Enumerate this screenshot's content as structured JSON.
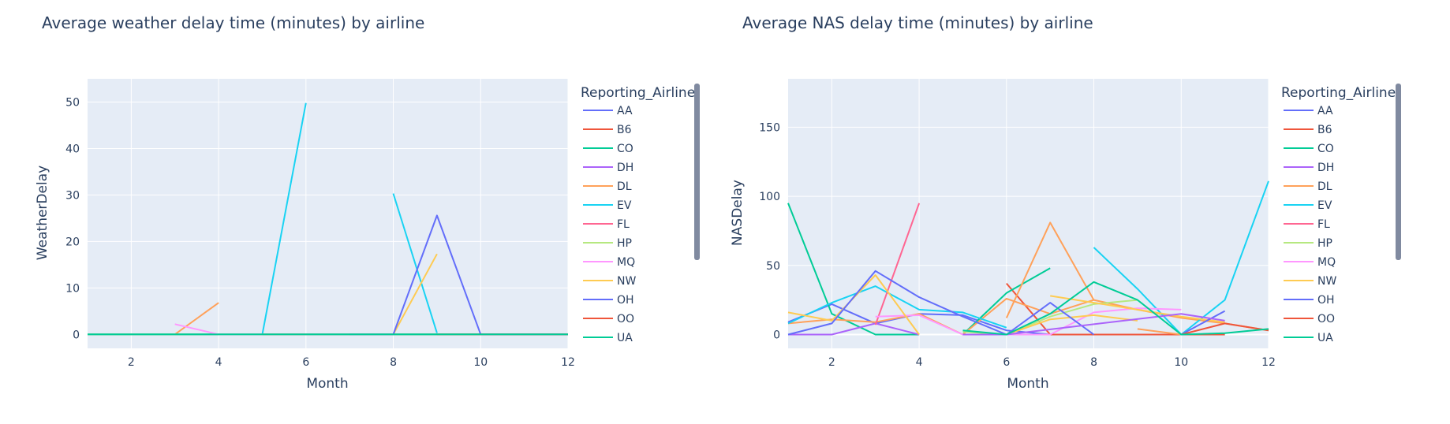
{
  "chart_data": [
    {
      "type": "line",
      "title": "Average weather delay time (minutes) by airline",
      "xlabel": "Month",
      "ylabel": "WeatherDelay",
      "xlim": [
        1,
        12
      ],
      "ylim": [
        -3,
        55
      ],
      "xticks": [
        2,
        4,
        6,
        8,
        10,
        12
      ],
      "yticks": [
        0,
        10,
        20,
        30,
        40,
        50
      ],
      "grid": true,
      "legend_title": "Reporting_Airline",
      "legend_position": "right",
      "series": [
        {
          "name": "AA",
          "color": "#636efa",
          "points": [
            [
              1,
              0
            ],
            [
              2,
              0
            ],
            [
              3,
              0
            ],
            [
              4,
              0
            ],
            [
              5,
              0
            ],
            [
              6,
              0
            ],
            [
              7,
              0
            ],
            [
              8,
              0
            ],
            [
              9,
              0
            ],
            [
              10,
              0
            ],
            [
              11,
              0
            ],
            [
              12,
              0
            ]
          ]
        },
        {
          "name": "B6",
          "color": "#EF553B",
          "points": [
            [
              1,
              0
            ],
            [
              2,
              0
            ],
            [
              3,
              0
            ],
            [
              4,
              0
            ],
            [
              5,
              0
            ],
            [
              6,
              0
            ],
            [
              7,
              0
            ],
            [
              8,
              0
            ],
            [
              9,
              0
            ],
            [
              10,
              0
            ],
            [
              11,
              0
            ],
            [
              12,
              0
            ]
          ]
        },
        {
          "name": "CO",
          "color": "#00cc96",
          "points": [
            [
              1,
              0
            ],
            [
              2,
              0
            ],
            [
              3,
              0
            ],
            [
              4,
              0
            ],
            [
              5,
              0
            ],
            [
              6,
              0
            ],
            [
              7,
              0
            ],
            [
              8,
              0
            ],
            [
              9,
              0
            ],
            [
              10,
              0
            ],
            [
              11,
              0
            ],
            [
              12,
              0
            ]
          ]
        },
        {
          "name": "DH",
          "color": "#ab63fa",
          "points": [
            [
              5,
              0
            ],
            [
              6,
              0
            ],
            [
              7,
              0
            ]
          ]
        },
        {
          "name": "DL",
          "color": "#FFA15A",
          "points": [
            [
              1,
              0
            ],
            [
              2,
              0
            ],
            [
              3,
              0
            ],
            [
              4,
              6.8
            ]
          ]
        },
        {
          "name": "EV",
          "color": "#19d3f3",
          "points": [
            [
              1,
              0
            ],
            [
              2,
              0
            ],
            [
              3,
              0
            ],
            [
              4,
              0
            ],
            [
              5,
              0
            ],
            [
              6,
              49.8
            ]
          ]
        },
        {
          "name": "EV",
          "color": "#19d3f3",
          "points": [
            [
              8,
              30.3
            ],
            [
              9,
              0.3
            ]
          ]
        },
        {
          "name": "FL",
          "color": "#FF6692",
          "points": [
            [
              5,
              0
            ],
            [
              6,
              0
            ]
          ]
        },
        {
          "name": "HP",
          "color": "#B6E880",
          "points": [
            [
              1,
              0
            ],
            [
              2,
              0
            ],
            [
              3,
              0
            ],
            [
              4,
              0
            ],
            [
              5,
              0
            ],
            [
              6,
              0
            ],
            [
              7,
              0
            ],
            [
              8,
              0
            ],
            [
              9,
              0
            ],
            [
              10,
              0
            ],
            [
              11,
              0
            ],
            [
              12,
              0
            ]
          ]
        },
        {
          "name": "MQ",
          "color": "#FF97FF",
          "points": [
            [
              3,
              2.2
            ],
            [
              4,
              0
            ],
            [
              5,
              0
            ]
          ]
        },
        {
          "name": "NW",
          "color": "#FECB52",
          "points": [
            [
              7,
              0
            ],
            [
              8,
              0
            ],
            [
              9,
              17.3
            ]
          ]
        },
        {
          "name": "OH",
          "color": "#636efa",
          "points": [
            [
              7,
              0
            ],
            [
              8,
              0
            ],
            [
              9,
              25.6
            ],
            [
              10,
              0
            ],
            [
              11,
              0
            ],
            [
              12,
              0
            ]
          ]
        },
        {
          "name": "OO",
          "color": "#EF553B",
          "points": [
            [
              9,
              0
            ],
            [
              10,
              0
            ],
            [
              11,
              0
            ],
            [
              12,
              0
            ]
          ]
        },
        {
          "name": "UA",
          "color": "#00cc96",
          "points": [
            [
              1,
              0
            ],
            [
              2,
              0
            ],
            [
              3,
              0
            ],
            [
              4,
              0
            ],
            [
              5,
              0
            ],
            [
              6,
              0
            ],
            [
              7,
              0
            ],
            [
              8,
              0
            ],
            [
              9,
              0
            ],
            [
              10,
              0
            ],
            [
              11,
              0
            ],
            [
              12,
              0
            ]
          ]
        }
      ]
    },
    {
      "type": "line",
      "title": "Average NAS delay time (minutes) by airline",
      "xlabel": "Month",
      "ylabel": "NASDelay",
      "xlim": [
        1,
        12
      ],
      "ylim": [
        -10,
        185
      ],
      "xticks": [
        2,
        4,
        6,
        8,
        10,
        12
      ],
      "yticks": [
        0,
        50,
        100,
        150
      ],
      "grid": true,
      "legend_title": "Reporting_Airline",
      "legend_position": "right",
      "series": [
        {
          "name": "AA",
          "color": "#636efa",
          "points": [
            [
              1,
              9
            ],
            [
              2,
              22
            ],
            [
              3,
              8
            ],
            [
              4,
              15
            ],
            [
              5,
              14
            ],
            [
              6,
              3
            ],
            [
              7,
              0
            ],
            [
              8,
              0
            ],
            [
              9,
              0
            ],
            [
              10,
              0
            ],
            [
              11,
              0
            ]
          ]
        },
        {
          "name": "B6",
          "color": "#EF553B",
          "points": [
            [
              6,
              37
            ],
            [
              7,
              0
            ],
            [
              8,
              0
            ],
            [
              9,
              0
            ],
            [
              10,
              0
            ],
            [
              11,
              0
            ]
          ]
        },
        {
          "name": "CO",
          "color": "#00cc96",
          "points": [
            [
              1,
              95
            ],
            [
              2,
              15
            ],
            [
              3,
              0
            ],
            [
              4,
              0
            ]
          ]
        },
        {
          "name": "CO",
          "color": "#00cc96",
          "points": [
            [
              5,
              0
            ],
            [
              6,
              30
            ],
            [
              7,
              48
            ]
          ]
        },
        {
          "name": "DH",
          "color": "#ab63fa",
          "points": [
            [
              1,
              0
            ],
            [
              2,
              0
            ],
            [
              3,
              8
            ],
            [
              4,
              0
            ]
          ]
        },
        {
          "name": "DL",
          "color": "#FFA15A",
          "points": [
            [
              1,
              8
            ],
            [
              2,
              11
            ],
            [
              3,
              9
            ],
            [
              4,
              15
            ],
            [
              5,
              0
            ],
            [
              6,
              26
            ],
            [
              7,
              15
            ],
            [
              8,
              25
            ],
            [
              9,
              18
            ],
            [
              10,
              12
            ],
            [
              11,
              8
            ],
            [
              12,
              3
            ]
          ]
        },
        {
          "name": "DL",
          "color": "#FFA15A",
          "points": [
            [
              6,
              12
            ],
            [
              7,
              81
            ],
            [
              8,
              25
            ]
          ]
        },
        {
          "name": "DL",
          "color": "#FFA15A",
          "points": [
            [
              9,
              4
            ],
            [
              10,
              0
            ]
          ]
        },
        {
          "name": "EV",
          "color": "#19d3f3",
          "points": [
            [
              1,
              8
            ],
            [
              2,
              23
            ],
            [
              3,
              35
            ],
            [
              4,
              18
            ],
            [
              5,
              16
            ],
            [
              6,
              5
            ]
          ]
        },
        {
          "name": "EV",
          "color": "#19d3f3",
          "points": [
            [
              8,
              63
            ],
            [
              9,
              33
            ],
            [
              10,
              0
            ],
            [
              11,
              25
            ],
            [
              12,
              111
            ]
          ]
        },
        {
          "name": "FL",
          "color": "#FF6692",
          "points": [
            [
              3,
              7
            ],
            [
              4,
              95
            ]
          ]
        },
        {
          "name": "HP",
          "color": "#B6E880",
          "points": [
            [
              5,
              2
            ],
            [
              6,
              0
            ],
            [
              7,
              13
            ],
            [
              8,
              22
            ],
            [
              9,
              25
            ]
          ]
        },
        {
          "name": "MQ",
          "color": "#FF97FF",
          "points": [
            [
              3,
              13
            ],
            [
              4,
              14
            ],
            [
              5,
              0
            ],
            [
              6,
              0
            ],
            [
              7,
              0
            ],
            [
              8,
              16
            ],
            [
              9,
              19
            ],
            [
              10,
              18
            ]
          ]
        },
        {
          "name": "NW",
          "color": "#FECB52",
          "points": [
            [
              1,
              16
            ],
            [
              2,
              10
            ],
            [
              3,
              43
            ],
            [
              4,
              0
            ]
          ]
        },
        {
          "name": "NW",
          "color": "#FECB52",
          "points": [
            [
              5,
              0
            ],
            [
              6,
              0
            ],
            [
              7,
              11
            ],
            [
              8,
              14
            ],
            [
              9,
              10
            ]
          ]
        },
        {
          "name": "NW",
          "color": "#FECB52",
          "points": [
            [
              7,
              28
            ],
            [
              8,
              23
            ],
            [
              9,
              18
            ],
            [
              10,
              13
            ],
            [
              11,
              9
            ]
          ]
        },
        {
          "name": "OH",
          "color": "#636efa",
          "points": [
            [
              1,
              0
            ],
            [
              2,
              8
            ],
            [
              3,
              46
            ],
            [
              4,
              27
            ],
            [
              5,
              13
            ],
            [
              6,
              0
            ],
            [
              7,
              23
            ],
            [
              8,
              0
            ]
          ]
        },
        {
          "name": "OH",
          "color": "#636efa",
          "points": [
            [
              10,
              0
            ],
            [
              11,
              17
            ]
          ]
        },
        {
          "name": "DH",
          "color": "#ab63fa",
          "points": [
            [
              5,
              0
            ],
            [
              6,
              0
            ],
            [
              10,
              15
            ],
            [
              11,
              10
            ]
          ]
        },
        {
          "name": "OO",
          "color": "#EF553B",
          "points": [
            [
              10,
              0
            ],
            [
              11,
              8
            ],
            [
              12,
              3
            ]
          ]
        },
        {
          "name": "UA",
          "color": "#00cc96",
          "points": [
            [
              5,
              3
            ],
            [
              6,
              0
            ],
            [
              7,
              15
            ],
            [
              8,
              38
            ],
            [
              9,
              25
            ],
            [
              10,
              0
            ],
            [
              11,
              1
            ],
            [
              12,
              4
            ]
          ]
        }
      ]
    }
  ],
  "legend_entries": [
    {
      "label": "AA",
      "color": "#636efa"
    },
    {
      "label": "B6",
      "color": "#EF553B"
    },
    {
      "label": "CO",
      "color": "#00cc96"
    },
    {
      "label": "DH",
      "color": "#ab63fa"
    },
    {
      "label": "DL",
      "color": "#FFA15A"
    },
    {
      "label": "EV",
      "color": "#19d3f3"
    },
    {
      "label": "FL",
      "color": "#FF6692"
    },
    {
      "label": "HP",
      "color": "#B6E880"
    },
    {
      "label": "MQ",
      "color": "#FF97FF"
    },
    {
      "label": "NW",
      "color": "#FECB52"
    },
    {
      "label": "OH",
      "color": "#636efa"
    },
    {
      "label": "OO",
      "color": "#EF553B"
    },
    {
      "label": "UA",
      "color": "#00cc96"
    }
  ],
  "colors": {
    "plot_background": "#e5ecf6",
    "grid": "#ffffff",
    "text": "#2a3f5f",
    "scrollbar": "#808aa0"
  }
}
